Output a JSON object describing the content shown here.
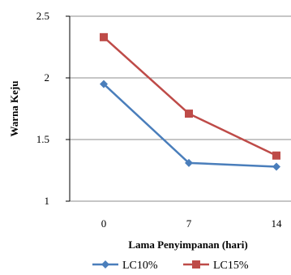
{
  "chart_data": {
    "type": "line",
    "x": [
      "0",
      "7",
      "14"
    ],
    "series": [
      {
        "name": "LC10%",
        "values": [
          1.95,
          1.31,
          1.28
        ],
        "color": "#4a7ebb",
        "marker": "diamond"
      },
      {
        "name": "LC15%",
        "values": [
          2.33,
          1.71,
          1.37
        ],
        "color": "#be4b48",
        "marker": "square"
      }
    ],
    "yticks": [
      "1",
      "1.5",
      "2",
      "2.5"
    ],
    "ylim": [
      1,
      2.5
    ],
    "xlabel": "Lama Penyimpanan (hari)",
    "ylabel": "Warna Keju",
    "grid": "horizontal",
    "legend_position": "bottom"
  }
}
